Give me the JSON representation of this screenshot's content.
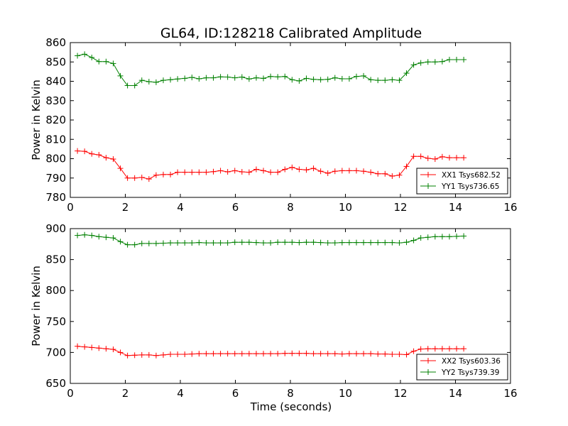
{
  "chart_data": [
    {
      "type": "line",
      "title": "GL64, ID:128218 Calibrated Amplitude",
      "xlabel": "",
      "ylabel": "Power in Kelvin",
      "xlim": [
        0,
        16
      ],
      "ylim": [
        780,
        860
      ],
      "xticks": [
        0,
        2,
        4,
        6,
        8,
        10,
        12,
        14,
        16
      ],
      "yticks": [
        780,
        790,
        800,
        810,
        820,
        830,
        840,
        850,
        860
      ],
      "legend_position": "lower-right",
      "grid": false,
      "x": [
        0.26,
        0.52,
        0.78,
        1.04,
        1.3,
        1.56,
        1.82,
        2.08,
        2.34,
        2.6,
        2.86,
        3.12,
        3.38,
        3.64,
        3.9,
        4.16,
        4.42,
        4.68,
        4.94,
        5.2,
        5.46,
        5.72,
        5.98,
        6.24,
        6.5,
        6.76,
        7.02,
        7.28,
        7.54,
        7.8,
        8.06,
        8.32,
        8.58,
        8.84,
        9.1,
        9.36,
        9.62,
        9.88,
        10.14,
        10.4,
        10.66,
        10.92,
        11.18,
        11.44,
        11.7,
        11.96,
        12.22,
        12.48,
        12.74,
        13.0,
        13.26,
        13.52,
        13.78,
        14.04,
        14.3
      ],
      "series": [
        {
          "name": "XX1 Tsys682.52",
          "color": "#ff0000",
          "values": [
            804,
            803.8,
            802.5,
            802,
            800.5,
            799.8,
            795,
            790,
            790,
            790.3,
            789.5,
            791.5,
            791.8,
            791.8,
            793,
            793,
            793,
            793,
            793,
            793.3,
            793.8,
            793.2,
            793.8,
            793.2,
            793,
            794.5,
            793.8,
            793,
            793,
            794.5,
            795.5,
            794.5,
            794.2,
            795,
            793.5,
            792.5,
            793.5,
            793.8,
            793.8,
            793.8,
            793.5,
            793,
            792.2,
            792.2,
            791,
            791.5,
            796,
            801.2,
            801.2,
            800.2,
            799.8,
            801,
            800.5,
            800.5,
            800.5
          ]
        },
        {
          "name": "YY1 Tsys736.65",
          "color": "#008000",
          "values": [
            853.2,
            854,
            852.3,
            850.2,
            850.2,
            849.2,
            842.8,
            837.8,
            837.8,
            840.5,
            839.8,
            839.5,
            840.5,
            840.8,
            841.2,
            841.5,
            842,
            841.3,
            841.8,
            841.8,
            842.3,
            842.2,
            841.8,
            842.2,
            841.2,
            841.8,
            841.5,
            842.5,
            842.3,
            842.5,
            840.8,
            840.2,
            841.5,
            841,
            840.8,
            841,
            841.8,
            841.3,
            841.3,
            842.5,
            842.8,
            840.8,
            840.5,
            840.5,
            840.8,
            840.5,
            844.2,
            848.5,
            849.5,
            850,
            850,
            850.2,
            851.2,
            851.2,
            851.2
          ]
        }
      ]
    },
    {
      "type": "line",
      "title": "",
      "xlabel": "Time (seconds)",
      "ylabel": "Power in Kelvin",
      "xlim": [
        0,
        16
      ],
      "ylim": [
        650,
        900
      ],
      "xticks": [
        0,
        2,
        4,
        6,
        8,
        10,
        12,
        14,
        16
      ],
      "yticks": [
        650,
        700,
        750,
        800,
        850,
        900
      ],
      "legend_position": "lower-right",
      "grid": false,
      "x": [
        0.26,
        0.52,
        0.78,
        1.04,
        1.3,
        1.56,
        1.82,
        2.08,
        2.34,
        2.6,
        2.86,
        3.12,
        3.38,
        3.64,
        3.9,
        4.16,
        4.42,
        4.68,
        4.94,
        5.2,
        5.46,
        5.72,
        5.98,
        6.24,
        6.5,
        6.76,
        7.02,
        7.28,
        7.54,
        7.8,
        8.06,
        8.32,
        8.58,
        8.84,
        9.1,
        9.36,
        9.62,
        9.88,
        10.14,
        10.4,
        10.66,
        10.92,
        11.18,
        11.44,
        11.7,
        11.96,
        12.22,
        12.48,
        12.74,
        13.0,
        13.26,
        13.52,
        13.78,
        14.04,
        14.3
      ],
      "series": [
        {
          "name": "XX2 Tsys603.36",
          "color": "#ff0000",
          "values": [
            710,
            709,
            708,
            707,
            706,
            705,
            700,
            695,
            695.5,
            696,
            696,
            695,
            696,
            697,
            697,
            697,
            697.5,
            698,
            698,
            698,
            698,
            698,
            698,
            698,
            698,
            698,
            698,
            698,
            698,
            698.5,
            698.5,
            698.5,
            698.5,
            698,
            698,
            698,
            698,
            697.5,
            698,
            698,
            698,
            698,
            697.5,
            697.5,
            697,
            697,
            696.5,
            702,
            705.5,
            706,
            706,
            706,
            706,
            706,
            706
          ]
        },
        {
          "name": "YY2 Tsys739.39",
          "color": "#008000",
          "values": [
            889,
            890,
            889,
            887,
            886,
            885,
            879,
            874,
            874,
            876,
            876,
            876,
            876.5,
            877,
            877,
            877,
            877,
            877.5,
            877,
            877,
            877,
            877,
            878,
            878,
            878,
            877.5,
            877,
            877,
            878,
            878,
            878,
            877.5,
            878,
            878,
            877.5,
            877,
            877,
            877.5,
            877.5,
            877.5,
            877.5,
            877.5,
            877.5,
            877.5,
            877.5,
            877,
            878,
            881,
            885,
            886,
            887,
            887,
            887,
            887.5,
            888
          ]
        }
      ]
    }
  ]
}
